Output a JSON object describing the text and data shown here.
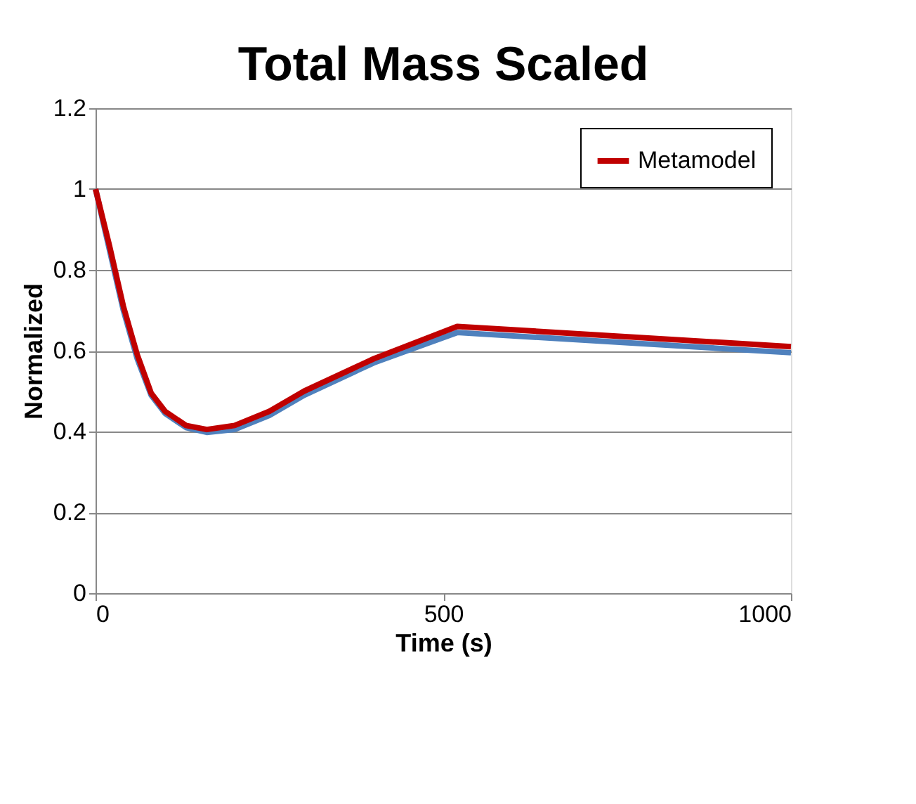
{
  "chart_data": {
    "type": "line",
    "title": "Total Mass Scaled",
    "xlabel": "Time (s)",
    "ylabel": "Normalized",
    "xlim": [
      0,
      1000
    ],
    "xticks": [
      0,
      500,
      1000
    ],
    "ylim": [
      0,
      1.2
    ],
    "yticks": [
      0,
      0.2,
      0.4,
      0.6,
      0.8,
      1,
      1.2
    ],
    "grid": "y",
    "legend": "top right",
    "marker": "none",
    "line_style": "solid",
    "series": [
      {
        "color": "#4f81bd",
        "x": [
          0,
          20,
          40,
          60,
          80,
          100,
          130,
          160,
          200,
          250,
          300,
          400,
          520,
          1000
        ],
        "values": [
          1,
          0.85,
          0.7,
          0.58,
          0.49,
          0.445,
          0.41,
          0.398,
          0.405,
          0.44,
          0.49,
          0.57,
          0.645,
          0.595
        ]
      },
      {
        "name": "Metamodel",
        "color": "#c00000",
        "x": [
          0,
          20,
          40,
          60,
          80,
          100,
          130,
          160,
          200,
          250,
          300,
          400,
          520,
          1000
        ],
        "values": [
          1,
          0.86,
          0.71,
          0.59,
          0.495,
          0.45,
          0.415,
          0.405,
          0.415,
          0.45,
          0.5,
          0.58,
          0.66,
          0.61
        ]
      }
    ]
  }
}
